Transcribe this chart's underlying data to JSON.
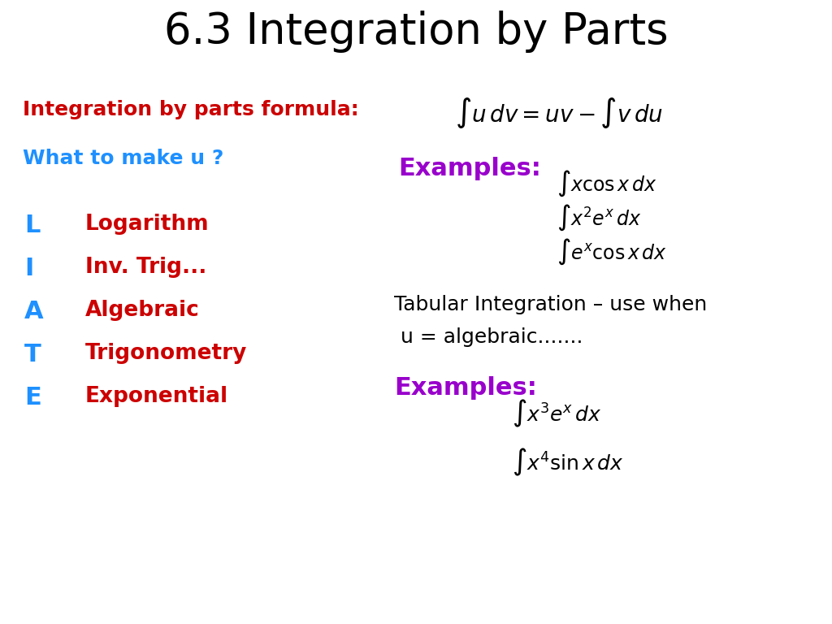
{
  "title": "6.3 Integration by Parts",
  "title_fontsize": 38,
  "title_color": "#000000",
  "bg_color": "#ffffff",
  "formula_label": "Integration by parts formula:",
  "formula_label_color": "#cc0000",
  "formula_label_fontsize": 18,
  "formula_math_fontsize": 20,
  "formula_math_color": "#000000",
  "what_label": "What to make u ?",
  "what_label_color": "#1e90ff",
  "what_label_fontsize": 18,
  "examples_label": "Examples:",
  "examples_label_color": "#9900cc",
  "examples_label_fontsize": 22,
  "ilate_letters": [
    "L",
    "I",
    "A",
    "T",
    "E"
  ],
  "ilate_letters_color": "#1e90ff",
  "ilate_words": [
    "Logarithm",
    "Inv. Trig...",
    "Algebraic",
    "Trigonometry",
    "Exponential"
  ],
  "ilate_words_color": "#cc0000",
  "ilate_fontsize": 19,
  "examples1_math_color": "#000000",
  "examples1_math_fontsize": 17,
  "tabular_line1": "Tabular Integration – use when",
  "tabular_line2": " u = algebraic.......",
  "tabular_text_color": "#000000",
  "tabular_text_fontsize": 18,
  "examples2_label": "Examples:",
  "examples2_label_color": "#9900cc",
  "examples2_label_fontsize": 22,
  "examples2_math_color": "#000000",
  "examples2_math_fontsize": 18
}
